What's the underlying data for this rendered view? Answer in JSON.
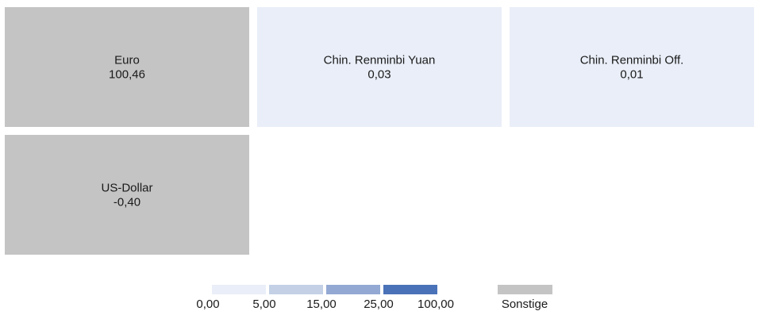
{
  "chart_data": {
    "type": "heatmap",
    "tiles": [
      {
        "name": "Euro",
        "value_label": "100,46",
        "value": 100.46,
        "bin": "Sonstige",
        "color": "#c4c4c4"
      },
      {
        "name": "Chin. Renminbi Yuan",
        "value_label": "0,03",
        "value": 0.03,
        "bin": "0,00 – 5,00",
        "color": "#e9eef8"
      },
      {
        "name": "Chin. Renminbi Off.",
        "value_label": "0,01",
        "value": 0.01,
        "bin": "0,00 – 5,00",
        "color": "#e9eef8"
      },
      {
        "name": "US-Dollar",
        "value_label": "-0,40",
        "value": -0.4,
        "bin": "Sonstige",
        "color": "#c4c4c4"
      }
    ],
    "legend": {
      "tick_labels": [
        "0,00",
        "5,00",
        "15,00",
        "25,00",
        "100,00"
      ],
      "bins": [
        {
          "from": 0,
          "to": 5,
          "color": "#e9eef8"
        },
        {
          "from": 5,
          "to": 15,
          "color": "#c3d0e6"
        },
        {
          "from": 15,
          "to": 25,
          "color": "#93a9d3"
        },
        {
          "from": 25,
          "to": 100,
          "color": "#4a72b8"
        }
      ],
      "other": {
        "label": "Sonstige",
        "color": "#c4c4c4"
      },
      "placement": "bottom"
    }
  }
}
